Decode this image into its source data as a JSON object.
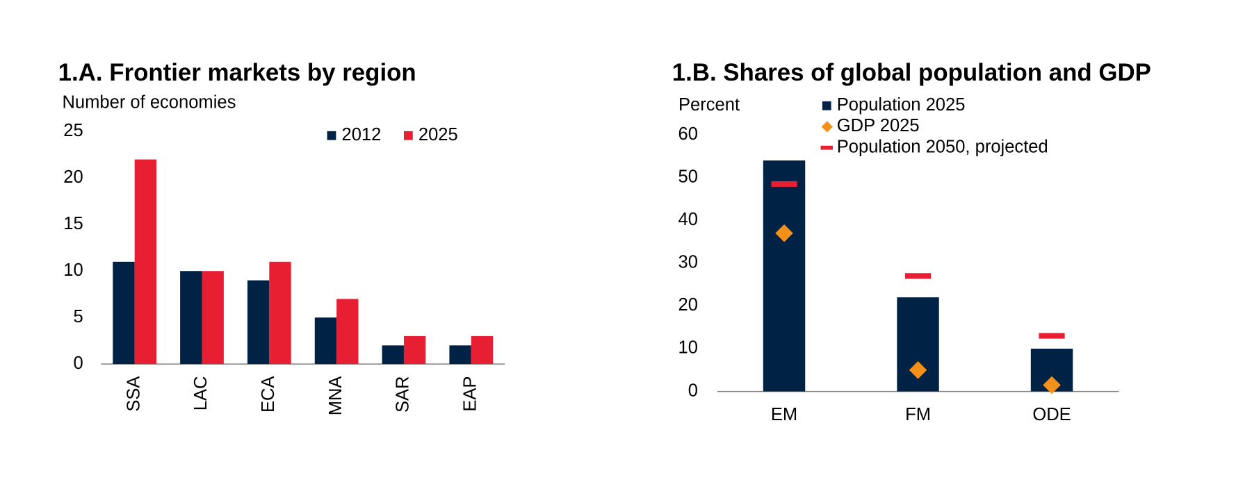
{
  "chart_data": [
    {
      "type": "bar",
      "title": "1.A. Frontier markets by region",
      "ylabel": "Number of economies",
      "categories": [
        "SSA",
        "LAC",
        "ECA",
        "MNA",
        "SAR",
        "EAP"
      ],
      "series": [
        {
          "name": "2012",
          "color": "#002345",
          "values": [
            11,
            10,
            9,
            5,
            2,
            2
          ]
        },
        {
          "name": "2025",
          "color": "#e81f33",
          "values": [
            22,
            10,
            11,
            7,
            3,
            3
          ]
        }
      ],
      "ylim": [
        0,
        25
      ],
      "yticks": [
        0,
        5,
        10,
        15,
        20,
        25
      ],
      "grid": false,
      "legend": "top"
    },
    {
      "type": "bar",
      "title": "1.B. Shares of global population and GDP",
      "ylabel": "Percent",
      "categories": [
        "EM",
        "FM",
        "ODE"
      ],
      "series": [
        {
          "name": "Population 2025",
          "color": "#002345",
          "style": "bar",
          "values": [
            54,
            22,
            10
          ]
        },
        {
          "name": "GDP 2025",
          "color": "#f39019",
          "style": "diamond",
          "values": [
            37,
            5,
            1.5
          ]
        },
        {
          "name": "Population 2050, projected",
          "color": "#e81f33",
          "style": "dash",
          "values": [
            48.5,
            27,
            13
          ]
        }
      ],
      "ylim": [
        0,
        60
      ],
      "yticks": [
        0,
        10,
        20,
        30,
        40,
        50,
        60
      ],
      "grid": false,
      "legend": "top-left"
    }
  ]
}
